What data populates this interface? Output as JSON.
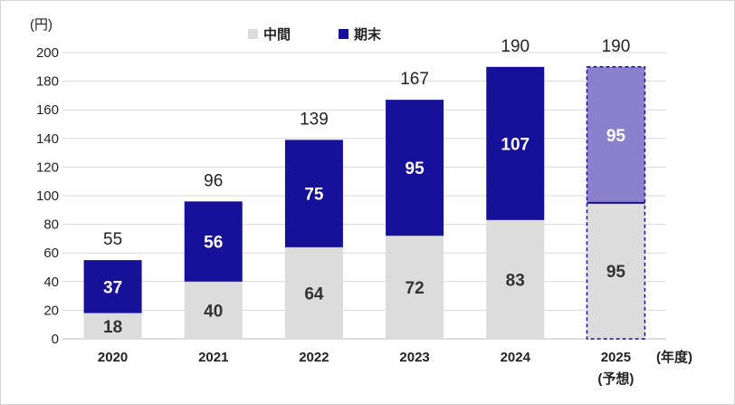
{
  "chart_data": {
    "type": "bar",
    "stacked": true,
    "unit_label": "(円)",
    "xlabel": "(年度)",
    "categories": [
      "2020",
      "2021",
      "2022",
      "2023",
      "2024",
      "2025"
    ],
    "category_sublabels": [
      "",
      "",
      "",
      "",
      "",
      "(予想)"
    ],
    "series": [
      {
        "name": "中間",
        "values": [
          18,
          40,
          64,
          72,
          83,
          95
        ],
        "color": "#dcdcdc",
        "forecast_color": "#dcdcdc"
      },
      {
        "name": "期末",
        "values": [
          37,
          56,
          75,
          95,
          107,
          95
        ],
        "color": "#17119a",
        "forecast_color": "#8a80cc"
      }
    ],
    "totals": [
      55,
      96,
      139,
      167,
      190,
      190
    ],
    "forecast_index": 5,
    "ylim": [
      0,
      200
    ],
    "yticks": [
      0,
      20,
      40,
      60,
      80,
      100,
      120,
      140,
      160,
      180,
      200
    ],
    "grid": true,
    "legend_position": "top-center",
    "forecast_outline_color": "#17119a"
  }
}
